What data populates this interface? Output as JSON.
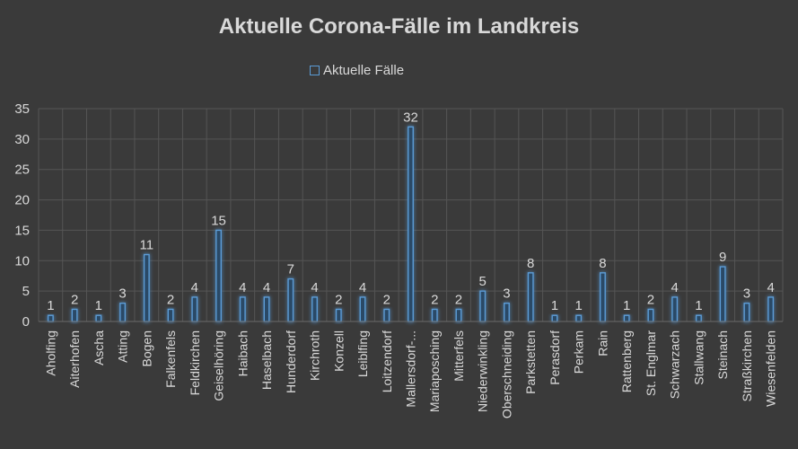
{
  "chart_data": {
    "type": "bar",
    "title": "Aktuelle Corona-Fälle im Landkreis",
    "xlabel": "",
    "ylabel": "",
    "ylim": [
      0,
      35
    ],
    "yticks": [
      0,
      5,
      10,
      15,
      20,
      25,
      30,
      35
    ],
    "grid": true,
    "legend_position": "top",
    "categories": [
      "Aholfing",
      "Aiterhofen",
      "Ascha",
      "Atting",
      "Bogen",
      "Falkenfels",
      "Feldkirchen",
      "Geiselhöring",
      "Haibach",
      "Haselbach",
      "Hunderdorf",
      "Kirchroth",
      "Konzell",
      "Leiblfing",
      "Loitzendorf",
      "Mallersdorf-...",
      "Mariaposching",
      "Mitterfels",
      "Niederwinkling",
      "Oberschneiding",
      "Parkstetten",
      "Perasdorf",
      "Perkam",
      "Rain",
      "Rattenberg",
      "St. Englmar",
      "Schwarzach",
      "Stallwang",
      "Steinach",
      "Straßkirchen",
      "Wiesenfelden"
    ],
    "series": [
      {
        "name": "Aktuelle Fälle",
        "color": "#5b9bd5",
        "values": [
          1,
          2,
          1,
          3,
          11,
          2,
          4,
          15,
          4,
          4,
          7,
          4,
          2,
          4,
          2,
          32,
          2,
          2,
          5,
          3,
          8,
          1,
          1,
          8,
          1,
          2,
          4,
          1,
          9,
          3,
          4
        ]
      }
    ]
  }
}
